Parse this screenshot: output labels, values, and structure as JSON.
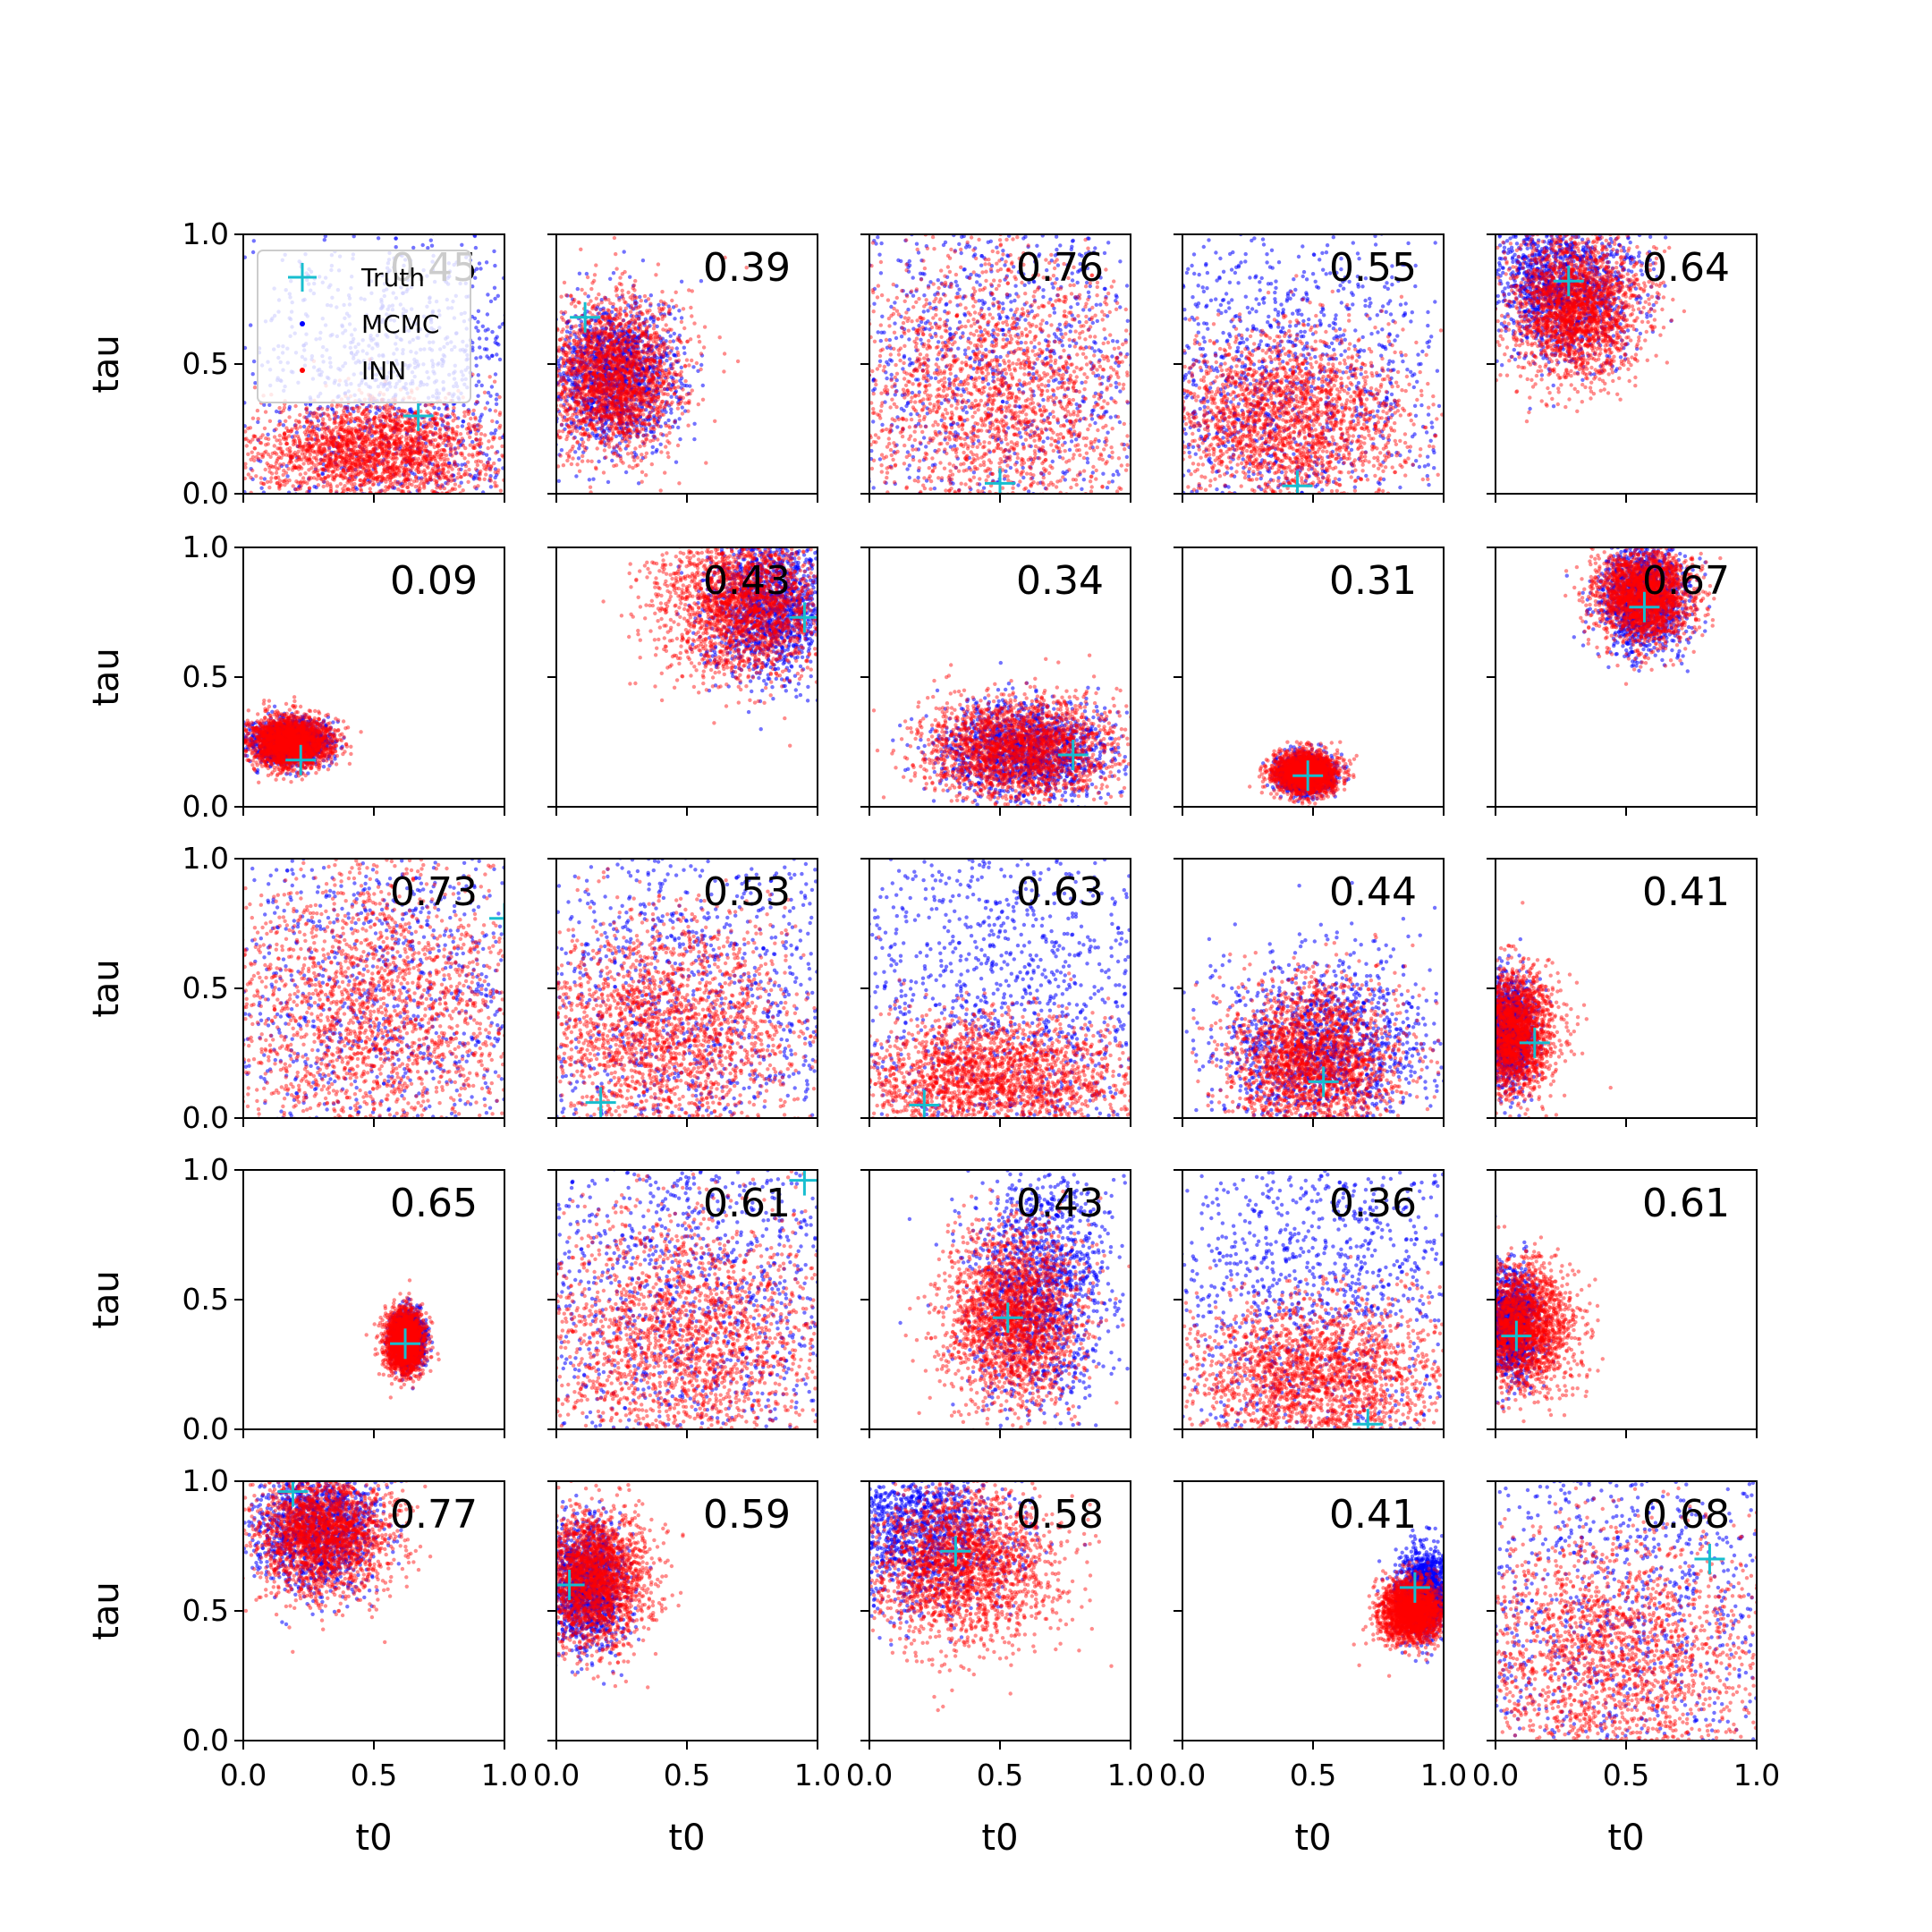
{
  "chart_data": {
    "type": "scatter",
    "layout": "5x5 grid of scatter panels",
    "xlabel": "t0",
    "ylabel": "tau",
    "xlim": [
      0,
      1
    ],
    "ylim": [
      0,
      1
    ],
    "xticks": [
      "0.0",
      "0.5",
      "1.0"
    ],
    "yticks": [
      "0.0",
      "0.5",
      "1.0"
    ],
    "grid": false,
    "legend": {
      "position": "top-left of first panel",
      "entries": [
        {
          "label": "Truth",
          "marker": "plus",
          "color": "#17becf"
        },
        {
          "label": "MCMC",
          "marker": "dot",
          "color": "#0000ff"
        },
        {
          "label": "INN",
          "marker": "dot",
          "color": "#ff0000"
        }
      ]
    },
    "colors": {
      "truth": "#17becf",
      "mcmc": "#0000ff",
      "inn": "#ff0000"
    },
    "panels": [
      {
        "value": "0.45",
        "truth": [
          0.67,
          0.3
        ],
        "inn": {
          "mean": [
            0.5,
            0.16
          ],
          "sd": [
            0.24,
            0.1
          ]
        },
        "mcmc": {
          "mean": [
            0.6,
            0.4
          ],
          "sd": [
            0.35,
            0.35
          ]
        }
      },
      {
        "value": "0.39",
        "truth": [
          0.11,
          0.68
        ],
        "inn": {
          "mean": [
            0.22,
            0.45
          ],
          "sd": [
            0.13,
            0.15
          ]
        },
        "mcmc": {
          "mean": [
            0.22,
            0.45
          ],
          "sd": [
            0.12,
            0.14
          ]
        }
      },
      {
        "value": "0.76",
        "truth": [
          0.5,
          0.04
        ],
        "inn": {
          "mean": [
            0.48,
            0.38
          ],
          "sd": [
            0.3,
            0.28
          ]
        },
        "mcmc": {
          "mean": [
            0.5,
            0.5
          ],
          "sd": [
            0.45,
            0.45
          ]
        }
      },
      {
        "value": "0.55",
        "truth": [
          0.44,
          0.03
        ],
        "inn": {
          "mean": [
            0.4,
            0.28
          ],
          "sd": [
            0.24,
            0.17
          ]
        },
        "mcmc": {
          "mean": [
            0.35,
            0.4
          ],
          "sd": [
            0.35,
            0.35
          ]
        }
      },
      {
        "value": "0.64",
        "truth": [
          0.28,
          0.82
        ],
        "inn": {
          "mean": [
            0.3,
            0.72
          ],
          "sd": [
            0.13,
            0.14
          ]
        },
        "mcmc": {
          "mean": [
            0.25,
            0.8
          ],
          "sd": [
            0.14,
            0.14
          ]
        }
      },
      {
        "value": "0.09",
        "truth": [
          0.22,
          0.18
        ],
        "inn": {
          "mean": [
            0.18,
            0.25
          ],
          "sd": [
            0.08,
            0.05
          ]
        },
        "mcmc": {
          "mean": [
            0.18,
            0.25
          ],
          "sd": [
            0.07,
            0.04
          ]
        }
      },
      {
        "value": "0.43",
        "truth": [
          0.95,
          0.73
        ],
        "inn": {
          "mean": [
            0.72,
            0.78
          ],
          "sd": [
            0.16,
            0.14
          ]
        },
        "mcmc": {
          "mean": [
            0.82,
            0.78
          ],
          "sd": [
            0.12,
            0.14
          ]
        }
      },
      {
        "value": "0.34",
        "truth": [
          0.78,
          0.2
        ],
        "inn": {
          "mean": [
            0.58,
            0.22
          ],
          "sd": [
            0.18,
            0.1
          ]
        },
        "mcmc": {
          "mean": [
            0.6,
            0.22
          ],
          "sd": [
            0.16,
            0.09
          ]
        }
      },
      {
        "value": "0.31",
        "truth": [
          0.48,
          0.12
        ],
        "inn": {
          "mean": [
            0.47,
            0.13
          ],
          "sd": [
            0.06,
            0.04
          ]
        },
        "mcmc": {
          "mean": [
            0.47,
            0.13
          ],
          "sd": [
            0.05,
            0.035
          ]
        }
      },
      {
        "value": "0.67",
        "truth": [
          0.57,
          0.77
        ],
        "inn": {
          "mean": [
            0.57,
            0.82
          ],
          "sd": [
            0.09,
            0.09
          ]
        },
        "mcmc": {
          "mean": [
            0.57,
            0.8
          ],
          "sd": [
            0.08,
            0.1
          ]
        }
      },
      {
        "value": "0.73",
        "truth": [
          1.0,
          0.77
        ],
        "inn": {
          "mean": [
            0.5,
            0.42
          ],
          "sd": [
            0.3,
            0.3
          ]
        },
        "mcmc": {
          "mean": [
            0.55,
            0.5
          ],
          "sd": [
            0.45,
            0.45
          ]
        }
      },
      {
        "value": "0.53",
        "truth": [
          0.17,
          0.06
        ],
        "inn": {
          "mean": [
            0.4,
            0.33
          ],
          "sd": [
            0.28,
            0.22
          ]
        },
        "mcmc": {
          "mean": [
            0.5,
            0.5
          ],
          "sd": [
            0.4,
            0.45
          ]
        }
      },
      {
        "value": "0.63",
        "truth": [
          0.21,
          0.05
        ],
        "inn": {
          "mean": [
            0.45,
            0.15
          ],
          "sd": [
            0.28,
            0.12
          ]
        },
        "mcmc": {
          "mean": [
            0.5,
            0.45
          ],
          "sd": [
            0.4,
            0.4
          ]
        }
      },
      {
        "value": "0.44",
        "truth": [
          0.54,
          0.14
        ],
        "inn": {
          "mean": [
            0.5,
            0.22
          ],
          "sd": [
            0.16,
            0.15
          ]
        },
        "mcmc": {
          "mean": [
            0.55,
            0.25
          ],
          "sd": [
            0.22,
            0.18
          ]
        }
      },
      {
        "value": "0.41",
        "truth": [
          0.15,
          0.29
        ],
        "inn": {
          "mean": [
            0.07,
            0.33
          ],
          "sd": [
            0.08,
            0.12
          ]
        },
        "mcmc": {
          "mean": [
            0.05,
            0.33
          ],
          "sd": [
            0.05,
            0.1
          ]
        }
      },
      {
        "value": "0.65",
        "truth": [
          0.62,
          0.33
        ],
        "inn": {
          "mean": [
            0.62,
            0.34
          ],
          "sd": [
            0.035,
            0.06
          ]
        },
        "mcmc": {
          "mean": [
            0.63,
            0.35
          ],
          "sd": [
            0.03,
            0.05
          ]
        }
      },
      {
        "value": "0.61",
        "truth": [
          0.95,
          0.96
        ],
        "inn": {
          "mean": [
            0.5,
            0.35
          ],
          "sd": [
            0.28,
            0.25
          ]
        },
        "mcmc": {
          "mean": [
            0.5,
            0.55
          ],
          "sd": [
            0.4,
            0.4
          ]
        }
      },
      {
        "value": "0.43",
        "truth": [
          0.53,
          0.43
        ],
        "inn": {
          "mean": [
            0.55,
            0.43
          ],
          "sd": [
            0.13,
            0.17
          ]
        },
        "mcmc": {
          "mean": [
            0.65,
            0.55
          ],
          "sd": [
            0.14,
            0.25
          ]
        }
      },
      {
        "value": "0.36",
        "truth": [
          0.71,
          0.02
        ],
        "inn": {
          "mean": [
            0.5,
            0.2
          ],
          "sd": [
            0.26,
            0.15
          ]
        },
        "mcmc": {
          "mean": [
            0.55,
            0.55
          ],
          "sd": [
            0.4,
            0.4
          ]
        }
      },
      {
        "value": "0.61",
        "truth": [
          0.08,
          0.36
        ],
        "inn": {
          "mean": [
            0.1,
            0.4
          ],
          "sd": [
            0.1,
            0.12
          ]
        },
        "mcmc": {
          "mean": [
            0.06,
            0.4
          ],
          "sd": [
            0.05,
            0.1
          ]
        }
      },
      {
        "value": "0.77",
        "truth": [
          0.19,
          0.96
        ],
        "inn": {
          "mean": [
            0.3,
            0.8
          ],
          "sd": [
            0.13,
            0.12
          ]
        },
        "mcmc": {
          "mean": [
            0.28,
            0.82
          ],
          "sd": [
            0.12,
            0.12
          ]
        }
      },
      {
        "value": "0.59",
        "truth": [
          0.05,
          0.6
        ],
        "inn": {
          "mean": [
            0.15,
            0.62
          ],
          "sd": [
            0.1,
            0.13
          ]
        },
        "mcmc": {
          "mean": [
            0.12,
            0.6
          ],
          "sd": [
            0.07,
            0.12
          ]
        }
      },
      {
        "value": "0.58",
        "truth": [
          0.33,
          0.73
        ],
        "inn": {
          "mean": [
            0.35,
            0.68
          ],
          "sd": [
            0.18,
            0.15
          ]
        },
        "mcmc": {
          "mean": [
            0.2,
            0.8
          ],
          "sd": [
            0.18,
            0.15
          ]
        }
      },
      {
        "value": "0.41",
        "truth": [
          0.89,
          0.59
        ],
        "inn": {
          "mean": [
            0.88,
            0.5
          ],
          "sd": [
            0.06,
            0.06
          ]
        },
        "mcmc": {
          "mean": [
            0.93,
            0.57
          ],
          "sd": [
            0.05,
            0.08
          ]
        }
      },
      {
        "value": "0.68",
        "truth": [
          0.82,
          0.7
        ],
        "inn": {
          "mean": [
            0.45,
            0.33
          ],
          "sd": [
            0.3,
            0.25
          ]
        },
        "mcmc": {
          "mean": [
            0.5,
            0.5
          ],
          "sd": [
            0.45,
            0.45
          ]
        }
      }
    ]
  }
}
